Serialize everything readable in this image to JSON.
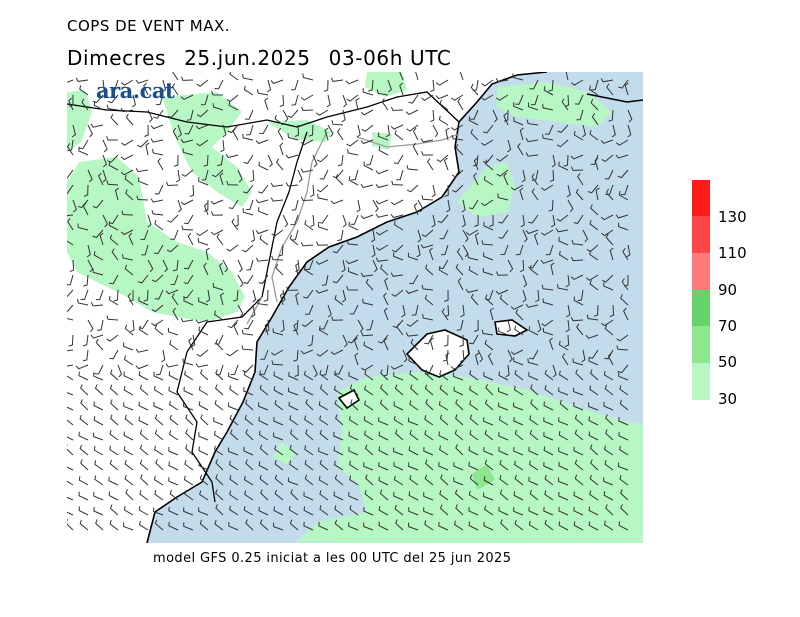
{
  "header": {
    "title": "COPS DE VENT MAX.",
    "day": "Dimecres",
    "date": "25.jun.2025",
    "time_range": "03-06h UTC"
  },
  "logo": {
    "text": "ara.cat",
    "color": "#1b4f8a"
  },
  "footer": {
    "text": "model GFS 0.25 iniciat a les 00 UTC del 25 jun 2025"
  },
  "map": {
    "sea_color": "#c2dcec",
    "land_color": "#ffffff",
    "coast_color": "#000000",
    "border_color": "#9a9a9a"
  },
  "legend": {
    "labels": [
      "130",
      "110",
      "90",
      "70",
      "50",
      "30"
    ],
    "colors": [
      "#ff1a1a",
      "#ff4545",
      "#ff7a7a",
      "#66d46b",
      "#8ee68e",
      "#b6f7c4"
    ]
  }
}
